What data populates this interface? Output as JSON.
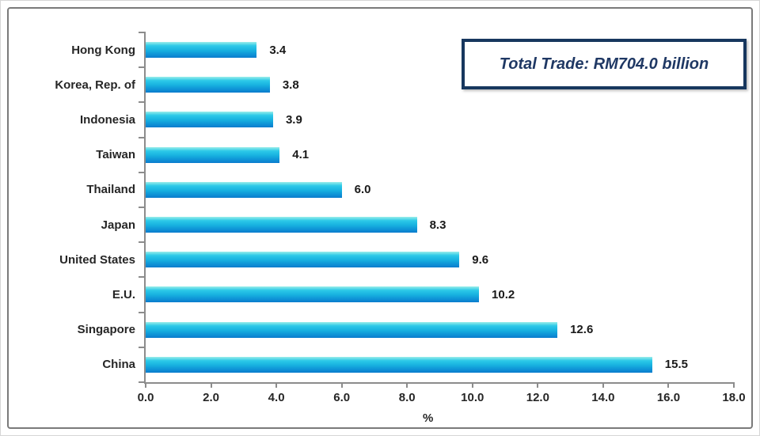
{
  "chart_data": {
    "type": "bar",
    "orientation": "horizontal",
    "title": "",
    "categories": [
      "Hong Kong",
      "Korea, Rep. of",
      "Indonesia",
      "Taiwan",
      "Thailand",
      "Japan",
      "United States",
      "E.U.",
      "Singapore",
      "China"
    ],
    "values": [
      3.4,
      3.8,
      3.9,
      4.1,
      6.0,
      8.3,
      9.6,
      10.2,
      12.6,
      15.5
    ],
    "value_labels": [
      "3.4",
      "3.8",
      "3.9",
      "4.1",
      "6.0",
      "8.3",
      "9.6",
      "10.2",
      "12.6",
      "15.5"
    ],
    "xlabel": "%",
    "ylabel": "",
    "xlim": [
      0,
      18
    ],
    "x_ticks": [
      "0.0",
      "2.0",
      "4.0",
      "6.0",
      "8.0",
      "10.0",
      "12.0",
      "14.0",
      "16.0",
      "18.0"
    ],
    "x_tick_values": [
      0,
      2,
      4,
      6,
      8,
      10,
      12,
      14,
      16,
      18
    ],
    "grid": false,
    "legend": false,
    "annotation": "Total Trade: RM704.0 billion"
  },
  "annotation_box": {
    "text": "Total Trade: RM704.0 billion"
  },
  "colors": {
    "bar_top": "#9beeea",
    "bar_upper": "#2cc9e8",
    "bar_mid": "#18b2e0",
    "bar_lower": "#0e92d6",
    "bar_bottom": "#0b7ccd",
    "axis": "#8c8c8c",
    "frame_border": "#7a7a7a",
    "box_border": "#17375e",
    "box_text": "#1f3864",
    "label_text": "#262626"
  }
}
